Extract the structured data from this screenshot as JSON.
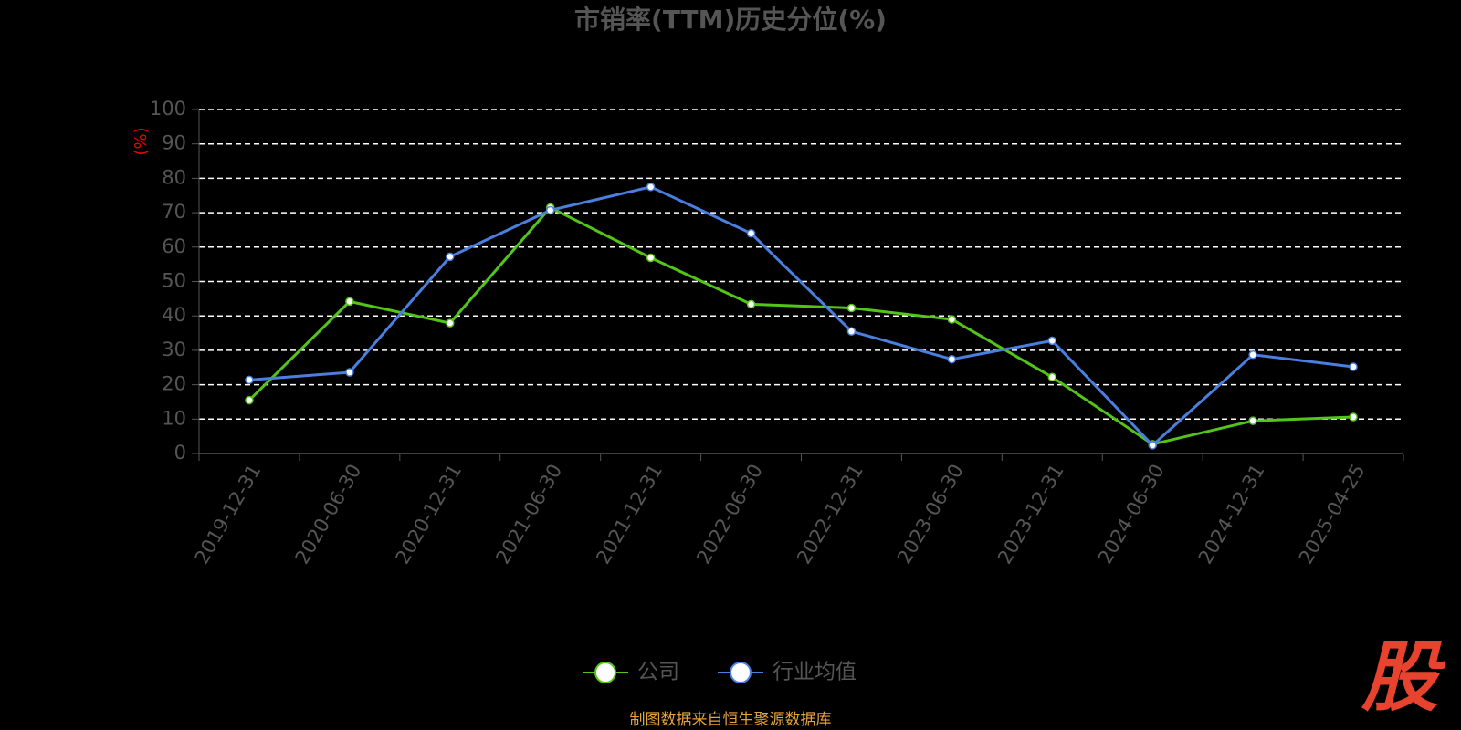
{
  "chart_data": {
    "type": "line",
    "title": "市销率(TTM)历史分位(%)",
    "y_label": "(%)",
    "categories": [
      "2019-12-31",
      "2020-06-30",
      "2020-12-31",
      "2021-06-30",
      "2021-12-31",
      "2022-06-30",
      "2022-12-31",
      "2023-06-30",
      "2023-12-31",
      "2024-06-30",
      "2024-12-31",
      "2025-04-25"
    ],
    "series": [
      {
        "name": "公司",
        "color": "#52c41a",
        "values": [
          15.5,
          44.2,
          37.9,
          71.5,
          56.9,
          43.4,
          42.3,
          39.0,
          22.2,
          2.7,
          9.5,
          10.6
        ]
      },
      {
        "name": "行业均值",
        "color": "#4a7fe0",
        "values": [
          21.4,
          23.6,
          57.2,
          70.7,
          77.5,
          64.0,
          35.5,
          27.4,
          32.8,
          2.4,
          28.7,
          25.2
        ]
      }
    ],
    "ylim": [
      0,
      100
    ],
    "yticks": [
      0,
      10,
      20,
      30,
      40,
      50,
      60,
      70,
      80,
      90,
      100
    ],
    "grid": true,
    "source": "制图数据来自恒生聚源数据库",
    "logo": "股"
  }
}
